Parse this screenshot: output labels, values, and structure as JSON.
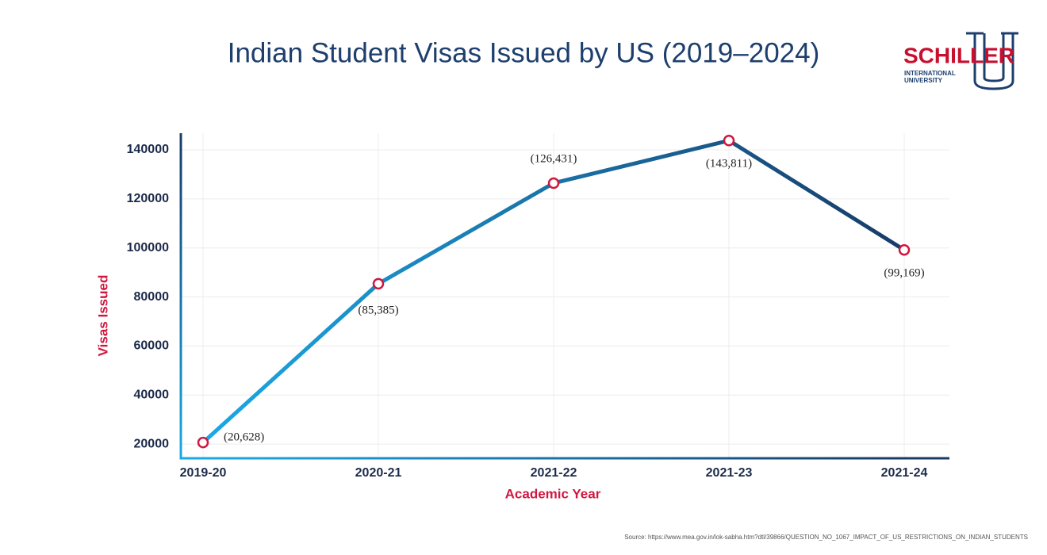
{
  "chart_data": {
    "type": "line",
    "title": "Indian Student Visas Issued by US (2019–2024)",
    "x_label": "Academic Year",
    "y_label": "Visas Issued",
    "categories": [
      "2019-20",
      "2020-21",
      "2021-22",
      "2021-23",
      "2021-24"
    ],
    "series": [
      {
        "name": "Visas Issued",
        "color": "#1f6aa5",
        "marker_color": "#d0173f",
        "values": [
          20628,
          85385,
          126431,
          143811,
          99169
        ],
        "value_labels": [
          "(20,628)",
          "(85,385)",
          "(126,431)",
          "(143,811)",
          "(99,169)"
        ]
      }
    ],
    "line_gradient": [
      "#1ba9e5",
      "#183b68"
    ],
    "ylim": [
      14200,
      146800
    ],
    "yticks": [
      20000,
      40000,
      60000,
      80000,
      100000,
      120000,
      140000
    ],
    "grid": true,
    "source": "Source: https://www.mea.gov.in/lok-sabha.htm?dtl/39866/QUESTION_NO_1067_IMPACT_OF_US_RESTRICTIONS_ON_INDIAN_STUDENTS"
  },
  "logo": {
    "name": "SCHILLER",
    "line1": "INTERNATIONAL",
    "line2": "UNIVERSITY"
  }
}
